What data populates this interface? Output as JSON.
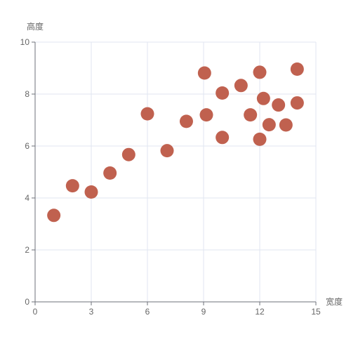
{
  "chart_data": {
    "type": "scatter",
    "xlabel": "宽度",
    "ylabel": "高度",
    "xlim": [
      0,
      15
    ],
    "ylim": [
      0,
      10
    ],
    "x_ticks": [
      0,
      3,
      6,
      9,
      12,
      15
    ],
    "y_ticks": [
      0,
      2,
      4,
      6,
      8,
      10
    ],
    "grid": true,
    "marker_color": "#c0614f",
    "series": [
      {
        "points": [
          {
            "x": 1,
            "y": 3.33
          },
          {
            "x": 2,
            "y": 4.47
          },
          {
            "x": 3,
            "y": 4.23
          },
          {
            "x": 4,
            "y": 4.96
          },
          {
            "x": 5,
            "y": 5.67
          },
          {
            "x": 6,
            "y": 7.24
          },
          {
            "x": 7.05,
            "y": 5.82
          },
          {
            "x": 8.08,
            "y": 6.95
          },
          {
            "x": 9.05,
            "y": 8.81
          },
          {
            "x": 9.15,
            "y": 7.2
          },
          {
            "x": 10,
            "y": 8.04
          },
          {
            "x": 10,
            "y": 6.33
          },
          {
            "x": 11,
            "y": 8.33
          },
          {
            "x": 11.5,
            "y": 7.2
          },
          {
            "x": 12,
            "y": 8.84
          },
          {
            "x": 12,
            "y": 6.26
          },
          {
            "x": 12.2,
            "y": 7.83
          },
          {
            "x": 12.5,
            "y": 6.82
          },
          {
            "x": 13,
            "y": 7.58
          },
          {
            "x": 13.4,
            "y": 6.81
          },
          {
            "x": 14,
            "y": 8.96
          },
          {
            "x": 14,
            "y": 7.66
          }
        ]
      }
    ]
  }
}
